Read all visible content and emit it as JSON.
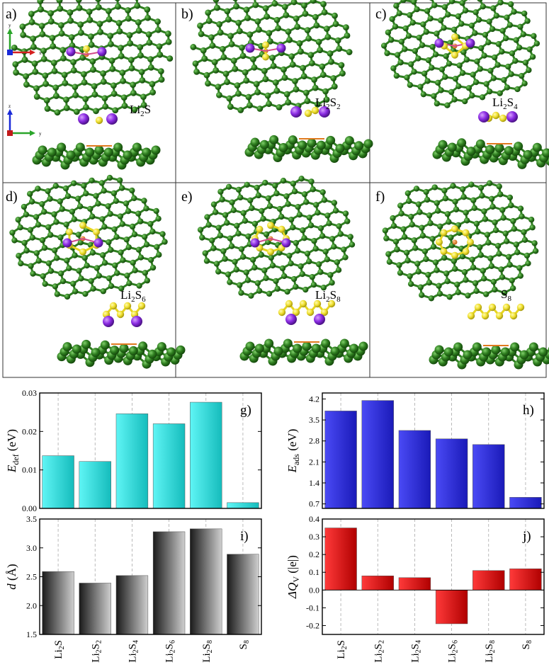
{
  "panels": [
    {
      "letter": "a)",
      "species": "Li2S",
      "label_main": "Li",
      "sub1": "2",
      "mid": "S",
      "sub2": "",
      "li": 2,
      "s": 1
    },
    {
      "letter": "b)",
      "species": "Li2S2",
      "label_main": "Li",
      "sub1": "2",
      "mid": "S",
      "sub2": "2",
      "li": 2,
      "s": 2
    },
    {
      "letter": "c)",
      "species": "Li2S4",
      "label_main": "Li",
      "sub1": "2",
      "mid": "S",
      "sub2": "4",
      "li": 2,
      "s": 4
    },
    {
      "letter": "d)",
      "species": "Li2S6",
      "label_main": "Li",
      "sub1": "2",
      "mid": "S",
      "sub2": "6",
      "li": 2,
      "s": 6
    },
    {
      "letter": "e)",
      "species": "Li2S8",
      "label_main": "Li",
      "sub1": "2",
      "mid": "S",
      "sub2": "8",
      "li": 2,
      "s": 8
    },
    {
      "letter": "f)",
      "species": "S8",
      "label_main": "",
      "sub1": "",
      "mid": "S",
      "sub2": "8",
      "li": 0,
      "s": 8
    }
  ],
  "axis_triads": {
    "top": {
      "up": "y",
      "right": "x"
    },
    "side": {
      "up": "z",
      "right": "y"
    }
  },
  "x_labels": [
    {
      "base": "Li",
      "sub1": "2",
      "mid": "S",
      "sub2": ""
    },
    {
      "base": "Li",
      "sub1": "2",
      "mid": "S",
      "sub2": "2"
    },
    {
      "base": "Li",
      "sub1": "2",
      "mid": "S",
      "sub2": "4"
    },
    {
      "base": "Li",
      "sub1": "2",
      "mid": "S",
      "sub2": "6"
    },
    {
      "base": "Li",
      "sub1": "2",
      "mid": "S",
      "sub2": "8"
    },
    {
      "base": "",
      "sub1": "",
      "mid": "S",
      "sub2": "8"
    }
  ],
  "colors": {
    "carbon": "#2e7d1f",
    "carbon_dark": "#1c5a12",
    "sulfur": "#f2e63a",
    "lithium": "#8a2be2",
    "nitrogen": "#e07a1f",
    "g_bar": "#22d3d3",
    "h_bar": "#2a2ad8",
    "i_bar": "#3a3a3a",
    "j_bar": "#dd1111"
  },
  "chart_data": [
    {
      "panel": "g)",
      "type": "bar",
      "ylabel_main": "E",
      "ylabel_sub": "def",
      "ylabel_unit": " (eV)",
      "categories": [
        "Li2S",
        "Li2S2",
        "Li2S4",
        "Li2S6",
        "Li2S8",
        "S8"
      ],
      "values": [
        0.0137,
        0.0122,
        0.0246,
        0.022,
        0.0276,
        0.0015
      ],
      "ylim": [
        0,
        0.03
      ],
      "yticks": [
        0,
        0.01,
        0.02,
        0.03
      ],
      "ytick_labels": [
        "0.00",
        "0.01",
        "0.02",
        "0.03"
      ]
    },
    {
      "panel": "h)",
      "type": "bar",
      "ylabel_main": "E",
      "ylabel_sub": "ads",
      "ylabel_unit": " (eV)",
      "categories": [
        "Li2S",
        "Li2S2",
        "Li2S4",
        "Li2S6",
        "Li2S8",
        "S8"
      ],
      "values": [
        3.8,
        4.15,
        3.15,
        2.87,
        2.68,
        0.92
      ],
      "ylim": [
        0.55,
        4.4
      ],
      "yticks": [
        0.7,
        1.4,
        2.1,
        2.8,
        3.5,
        4.2
      ],
      "ytick_labels": [
        "0.7",
        "1.4",
        "2.1",
        "2.8",
        "3.5",
        "4.2"
      ]
    },
    {
      "panel": "i)",
      "type": "bar",
      "ylabel_main": "d",
      "ylabel_sub": "",
      "ylabel_unit": " (Å)",
      "categories": [
        "Li2S",
        "Li2S2",
        "Li2S4",
        "Li2S6",
        "Li2S8",
        "S8"
      ],
      "values": [
        2.59,
        2.39,
        2.52,
        3.28,
        3.33,
        2.89
      ],
      "ylim": [
        1.5,
        3.5
      ],
      "yticks": [
        1.5,
        2.0,
        2.5,
        3.0,
        3.5
      ],
      "ytick_labels": [
        "1.5",
        "2.0",
        "2.5",
        "3.0",
        "3.5"
      ]
    },
    {
      "panel": "j)",
      "type": "bar",
      "ylabel_main": "ΔQ",
      "ylabel_sub": "V",
      "ylabel_unit": " (|e|)",
      "categories": [
        "Li2S",
        "Li2S2",
        "Li2S4",
        "Li2S6",
        "Li2S8",
        "S8"
      ],
      "values": [
        0.35,
        0.08,
        0.07,
        -0.19,
        0.11,
        0.12
      ],
      "ylim": [
        -0.25,
        0.4
      ],
      "yticks": [
        -0.2,
        -0.1,
        0.0,
        0.1,
        0.2,
        0.3,
        0.4
      ],
      "ytick_labels": [
        "-0.2",
        "-0.1",
        "0.0",
        "0.1",
        "0.2",
        "0.3",
        "0.4"
      ]
    }
  ]
}
